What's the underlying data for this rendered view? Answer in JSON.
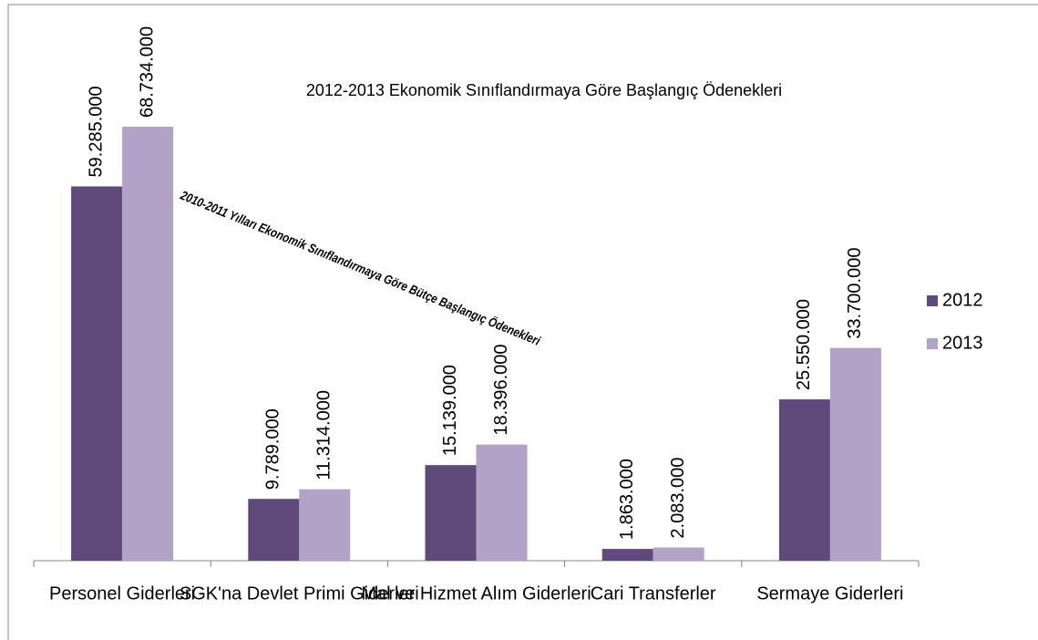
{
  "chart_data": {
    "type": "bar",
    "title": "2012-2013 Ekonomik Sınıflandırmaya Göre Başlangıç Ödenekleri",
    "annotation": "2010-2011 Yılları Ekonomik Sınıflandırmaya Göre Bütçe Başlangıç Ödenekleri",
    "categories": [
      "Personel Giderleri",
      "SGK'na Devlet Primi Giderleri",
      "Mal ve Hizmet Alım Giderleri",
      "Cari Transferler",
      "Sermaye Giderleri"
    ],
    "series": [
      {
        "name": "2012",
        "color": "#604a7b",
        "values": [
          59285000,
          9789000,
          15139000,
          1863000,
          25550000
        ],
        "value_labels": [
          "59.285.000",
          "9.789.000",
          "15.139.000",
          "1.863.000",
          "25.550.000"
        ]
      },
      {
        "name": "2013",
        "color": "#b3a2c7",
        "values": [
          68734000,
          11314000,
          18396000,
          2083000,
          33700000
        ],
        "value_labels": [
          "68.734.000",
          "11.314.000",
          "18.396.000",
          "2.083.000",
          "33.700.000"
        ]
      }
    ],
    "ylim": [
      0,
      80000000
    ],
    "legend": "right"
  }
}
